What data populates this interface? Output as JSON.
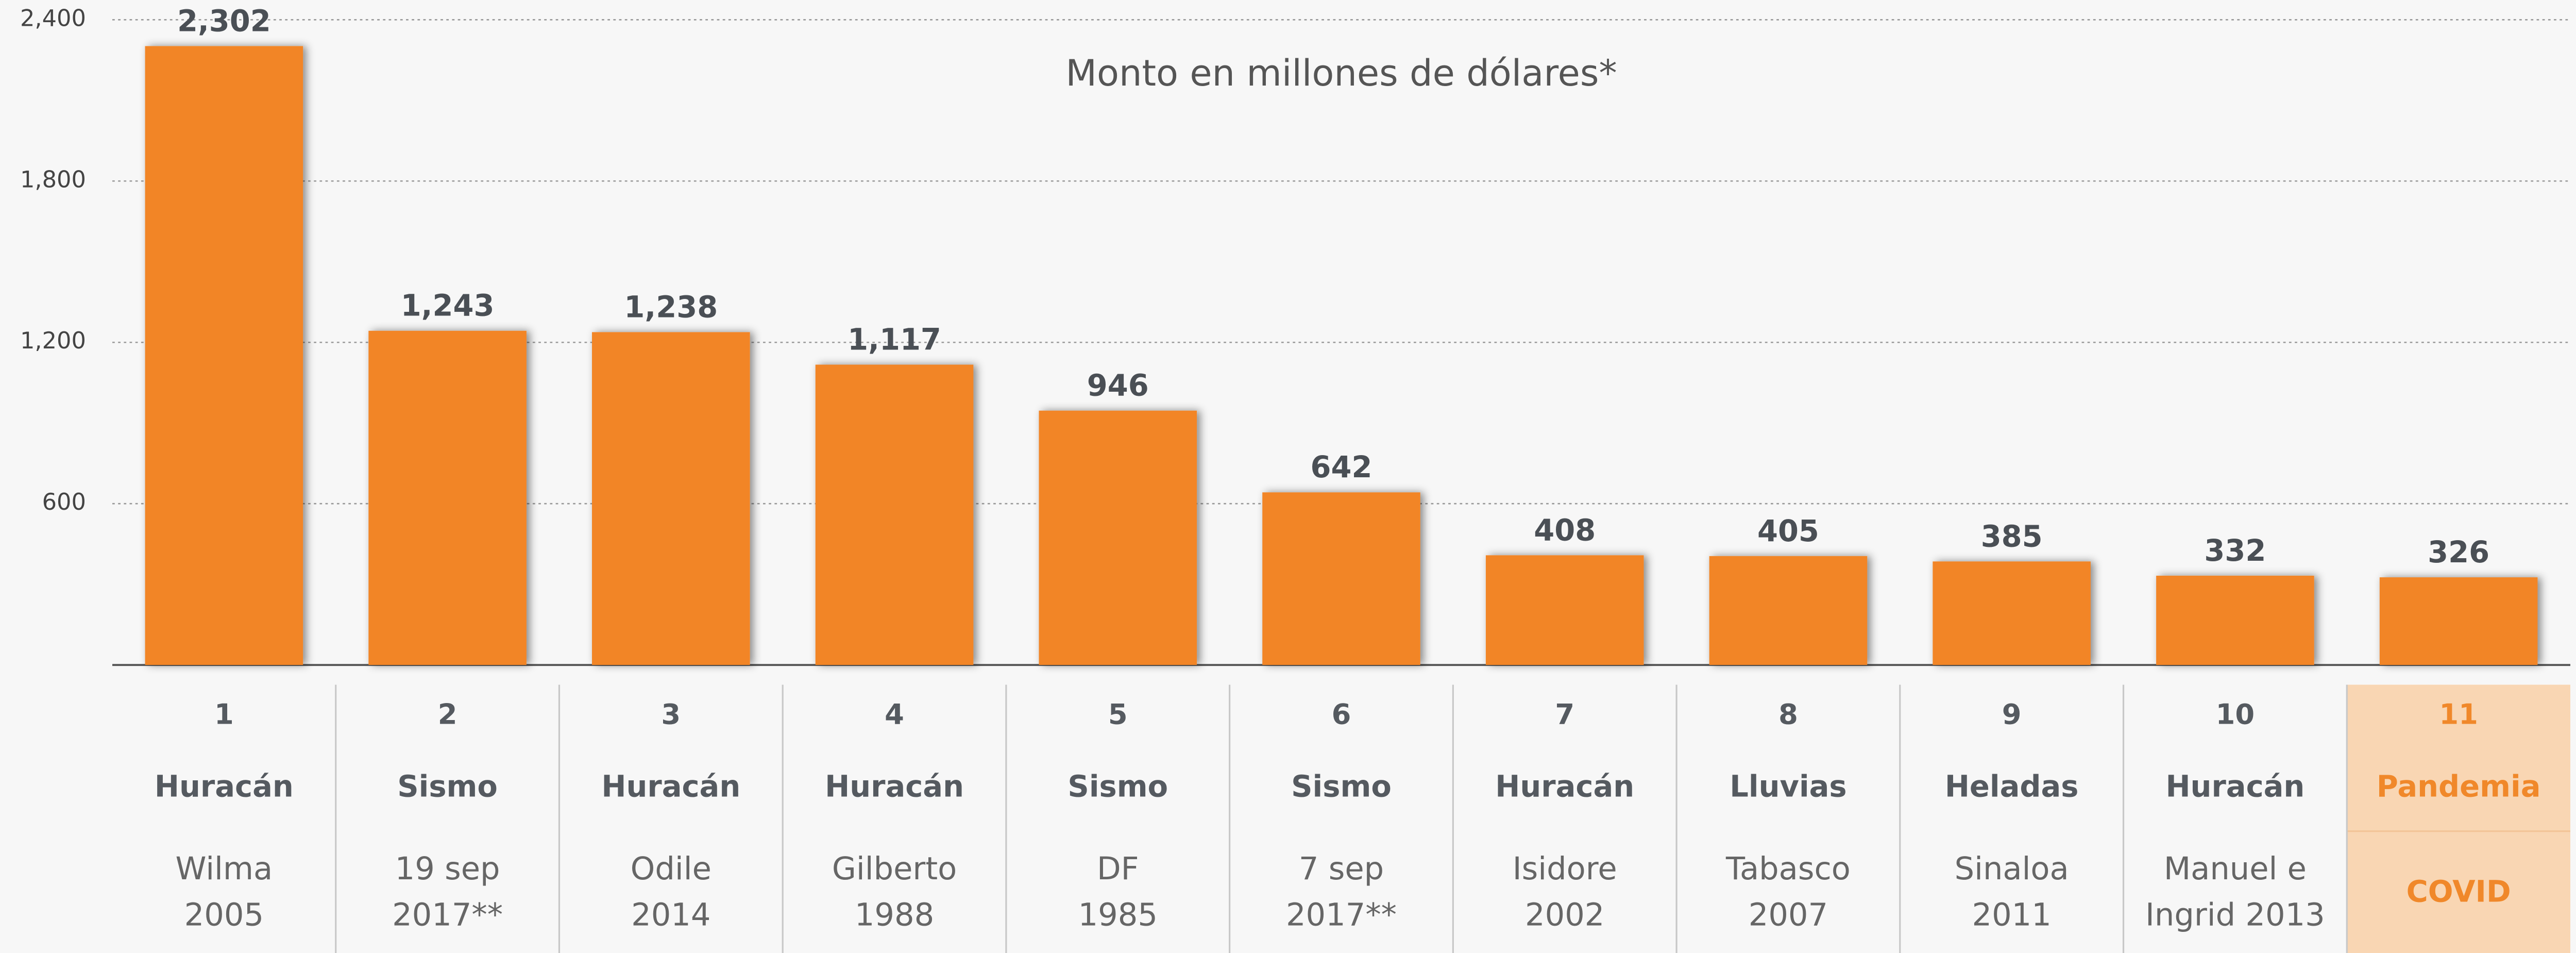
{
  "chart_data": {
    "type": "bar",
    "subtitle": "Monto en millones de dólares*",
    "rank": [
      "1",
      "2",
      "3",
      "4",
      "5",
      "6",
      "7",
      "8",
      "9",
      "10",
      "11"
    ],
    "kind": [
      "Huracán",
      "Sismo",
      "Huracán",
      "Huracán",
      "Sismo",
      "Sismo",
      "Huracán",
      "Lluvias",
      "Heladas",
      "Huracán",
      "Pandemia"
    ],
    "event": [
      [
        "Wilma",
        "2005"
      ],
      [
        "19 sep",
        "2017**"
      ],
      [
        "Odile",
        "2014"
      ],
      [
        "Gilberto",
        "1988"
      ],
      [
        "DF",
        "1985"
      ],
      [
        "7 sep",
        "2017**"
      ],
      [
        "Isidore",
        "2002"
      ],
      [
        "Tabasco",
        "2007"
      ],
      [
        "Sinaloa",
        "2011"
      ],
      [
        "Manuel e",
        "Ingrid 2013"
      ],
      [
        "COVID"
      ]
    ],
    "values": [
      2302,
      1243,
      1238,
      1117,
      946,
      642,
      408,
      405,
      385,
      332,
      326
    ],
    "value_labels": [
      "2,302",
      "1,243",
      "1,238",
      "1,117",
      "946",
      "642",
      "408",
      "405",
      "385",
      "332",
      "326"
    ],
    "color": "#f28526",
    "ylim": [
      0,
      2400
    ],
    "yticks": [
      600,
      {
        "value": 1200,
        "label": "1,200"
      },
      {
        "value": 1800,
        "label": "1,800"
      },
      {
        "value": 2400,
        "label": "2,400"
      }
    ],
    "grid": true
  }
}
